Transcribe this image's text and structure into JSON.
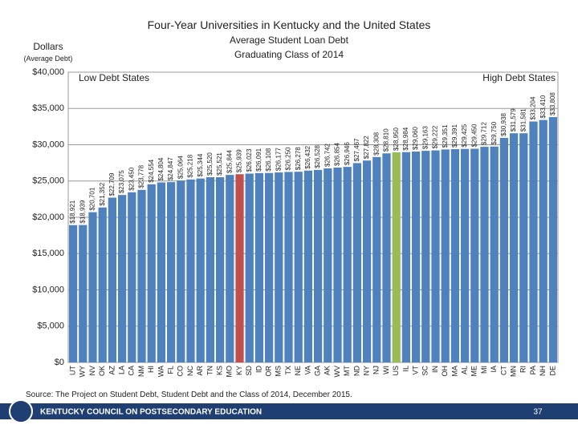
{
  "chart_data": {
    "type": "bar",
    "title": "Four-Year Universities in Kentucky and the United States",
    "subtitle": "Average Student Loan Debt",
    "subtitle2": "Graduating Class of 2014",
    "y_label": "Dollars",
    "y_label_note": "(Average Debt)",
    "annotations": [
      "Low Debt States",
      "High Debt States"
    ],
    "categories": [
      "UT",
      "WY",
      "NV",
      "OK",
      "AZ",
      "LA",
      "CA",
      "NM",
      "HI",
      "WA",
      "FL",
      "CO",
      "NC",
      "AR",
      "TN",
      "KS",
      "MO",
      "KY",
      "SD",
      "ID",
      "OR",
      "MS",
      "TX",
      "NE",
      "VA",
      "GA",
      "AK",
      "WV",
      "MT",
      "ND",
      "NY",
      "NJ",
      "WI",
      "US",
      "IL",
      "VT",
      "SC",
      "IN",
      "OH",
      "MA",
      "AL",
      "ME",
      "MI",
      "IA",
      "CT",
      "MN",
      "RI",
      "PA",
      "NH",
      "DE"
    ],
    "values": [
      18921,
      18939,
      20701,
      21352,
      22709,
      23075,
      23450,
      23778,
      24554,
      24804,
      24847,
      25064,
      25218,
      25344,
      25520,
      25521,
      25844,
      25939,
      26023,
      26091,
      26108,
      26177,
      26250,
      26278,
      26432,
      26528,
      26742,
      26854,
      26946,
      27467,
      27822,
      28308,
      28810,
      28950,
      28984,
      29060,
      29163,
      29222,
      29351,
      29391,
      29425,
      29450,
      29712,
      29750,
      30938,
      31579,
      31581,
      33204,
      33410,
      33808
    ],
    "value_labels": [
      "$18,921",
      "$18,939",
      "$20,701",
      "$21,352",
      "$22,709",
      "$23,075",
      "$23,450",
      "$23,778",
      "$24,554",
      "$24,804",
      "$24,847",
      "$25,064",
      "$25,218",
      "$25,344",
      "$25,520",
      "$25,521",
      "$25,844",
      "$25,939",
      "$26,023",
      "$26,091",
      "$26,108",
      "$26,177",
      "$26,250",
      "$26,278",
      "$26,432",
      "$26,528",
      "$26,742",
      "$26,854",
      "$26,946",
      "$27,467",
      "$27,822",
      "$28,308",
      "$28,810",
      "$28,950",
      "$28,984",
      "$29,060",
      "$29,163",
      "$29,222",
      "$29,351",
      "$29,391",
      "$29,425",
      "$29,450",
      "$29,712",
      "$29,750",
      "$30,938",
      "$31,579",
      "$31,581",
      "$33,204",
      "$33,410",
      "$33,808"
    ],
    "color": "#4f81bd",
    "highlight_colors": {
      "KY": "#c0504d",
      "US": "#9bbb59"
    },
    "ylim": [
      0,
      40000
    ],
    "yticks": [
      {
        "value": 0,
        "label": "$0"
      },
      {
        "value": 5000,
        "label": "$5,000"
      },
      {
        "value": 10000,
        "label": "$10,000"
      },
      {
        "value": 15000,
        "label": "$15,000"
      },
      {
        "value": 20000,
        "label": "$20,000"
      },
      {
        "value": 25000,
        "label": "$25,000"
      },
      {
        "value": 30000,
        "label": "$30,000"
      },
      {
        "value": 35000,
        "label": "$35,000"
      },
      {
        "value": 40000,
        "label": "$40,000"
      }
    ],
    "grid": true,
    "source": "Source:  The Project on Student Debt, Student Debt and the Class of 2014, December 2015."
  },
  "footer": {
    "organization": "KENTUCKY COUNCIL ON POSTSECONDARY EDUCATION",
    "page_number": "37"
  }
}
